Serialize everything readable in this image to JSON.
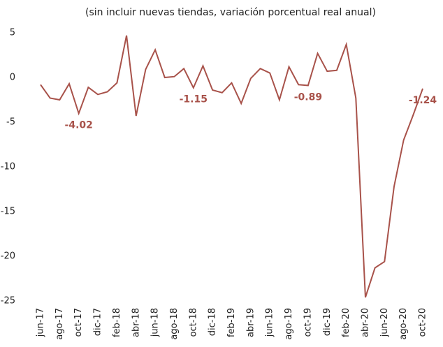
{
  "chart_data": {
    "type": "line",
    "title": "(sin incluir nuevas tiendas, variación porcentual real anual)",
    "categories": [
      "jun-17",
      null,
      "ago-17",
      null,
      "oct-17",
      null,
      "dic-17",
      null,
      "feb-18",
      null,
      "abr-18",
      null,
      "jun-18",
      null,
      "ago-18",
      null,
      "oct-18",
      null,
      "dic-18",
      null,
      "feb-19",
      null,
      "abr-19",
      null,
      "jun-19",
      null,
      "ago-19",
      null,
      "oct-19",
      null,
      "dic-19",
      null,
      "feb-20",
      null,
      "abr-20",
      null,
      "jun-20",
      null,
      "ago-20",
      null,
      "oct-20"
    ],
    "series": [
      {
        "color": "#a8524a",
        "values": [
          -0.8,
          -2.3,
          -2.5,
          -0.7,
          -4.02,
          -1.1,
          -1.9,
          -1.6,
          -0.6,
          4.7,
          -4.3,
          0.9,
          3.1,
          0.0,
          0.1,
          1.0,
          -1.15,
          1.3,
          -1.4,
          -1.7,
          -0.6,
          -2.9,
          -0.1,
          1.0,
          0.5,
          -2.5,
          1.2,
          -0.8,
          -0.89,
          2.7,
          0.7,
          0.8,
          3.7,
          -2.3,
          -24.6,
          -21.3,
          -20.6,
          -12.2,
          -7.0,
          -4.2,
          -1.24
        ],
        "value_labels": [
          null,
          null,
          null,
          null,
          "-4.02",
          null,
          null,
          null,
          null,
          null,
          null,
          null,
          null,
          null,
          null,
          null,
          "-1.15",
          null,
          null,
          null,
          null,
          null,
          null,
          null,
          null,
          null,
          null,
          null,
          "-0.89",
          null,
          null,
          null,
          null,
          null,
          null,
          null,
          null,
          null,
          null,
          null,
          "-1.24"
        ]
      }
    ],
    "ylim": [
      -25,
      5
    ],
    "yticks": [
      5,
      0,
      -5,
      -10,
      -15,
      -20,
      -25
    ],
    "grid": false
  }
}
